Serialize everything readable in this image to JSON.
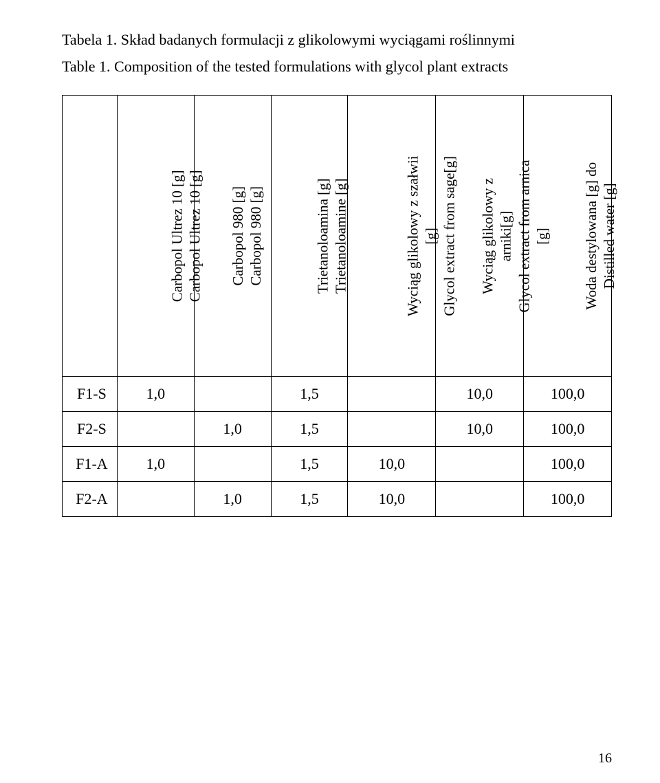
{
  "caption": {
    "line1": "Tabela 1. Skład badanych formulacji z glikolowymi wyciągami roślinnymi",
    "line2": "Table 1. Composition of the tested formulations with glycol plant extracts"
  },
  "table": {
    "header_cells": [
      {
        "lines": [
          "Carbopol Ultrez 10 [g]",
          "Carbopol Ultrez 10 [g]"
        ]
      },
      {
        "lines": [
          "Carbopol 980 [g]",
          "Carbopol 980 [g]"
        ]
      },
      {
        "lines": [
          "Trietanoloamina [g]",
          "Trietanoloamine [g]"
        ]
      },
      {
        "lines": [
          "Wyciąg glikolowy z szałwii",
          "[g]",
          "Glycol extract from sage[g]"
        ]
      },
      {
        "lines": [
          "Wyciąg glikolowy z",
          "arniki[g]",
          "Glycol extract from arnica",
          "[g]"
        ]
      },
      {
        "lines": [
          "Woda destylowana [g] do",
          "Distilled water [g]"
        ]
      }
    ],
    "rows": [
      {
        "label": "F1-S",
        "cells": [
          "1,0",
          "",
          "1,5",
          "",
          "10,0",
          "100,0"
        ]
      },
      {
        "label": "F2-S",
        "cells": [
          "",
          "1,0",
          "1,5",
          "",
          "10,0",
          "100,0"
        ]
      },
      {
        "label": "F1-A",
        "cells": [
          "1,0",
          "",
          "1,5",
          "10,0",
          "",
          "100,0"
        ]
      },
      {
        "label": "F2-A",
        "cells": [
          "",
          "1,0",
          "1,5",
          "10,0",
          "",
          "100,0"
        ]
      }
    ]
  },
  "page_number": "16"
}
